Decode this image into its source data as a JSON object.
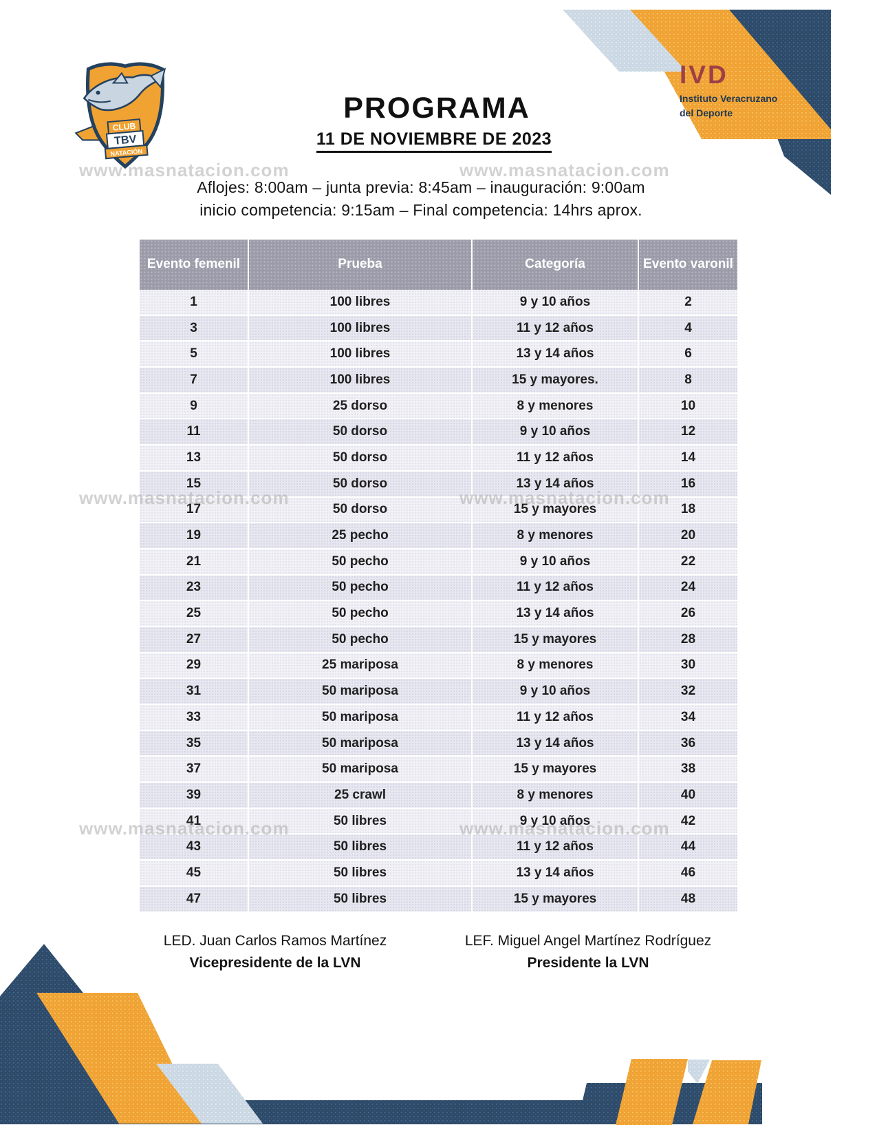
{
  "page": {
    "title": "PROGRAMA",
    "date": "11 DE NOVIEMBRE DE 2023",
    "schedule_line1": "Aflojes: 8:00am – junta previa: 8:45am –  inauguración: 9:00am",
    "schedule_line2": "inicio competencia: 9:15am – Final competencia: 14hrs aprox."
  },
  "logos": {
    "club": {
      "line1": "CLUB",
      "line2": "TBV",
      "line3": "NATACIÓN"
    },
    "ivd": {
      "acronym": "IVD",
      "line1": "Instituto Veracruzano",
      "line2": "del Deporte"
    }
  },
  "watermark": "www.masnatacion.com",
  "table": {
    "headers": [
      "Evento femenil",
      "Prueba",
      "Categoría",
      "Evento varonil"
    ],
    "rows": [
      [
        "1",
        "100 libres",
        "9 y 10 años",
        "2"
      ],
      [
        "3",
        "100 libres",
        "11 y 12 años",
        "4"
      ],
      [
        "5",
        "100 libres",
        "13 y 14 años",
        "6"
      ],
      [
        "7",
        "100 libres",
        "15 y mayores.",
        "8"
      ],
      [
        "9",
        "25 dorso",
        "8 y menores",
        "10"
      ],
      [
        "11",
        "50 dorso",
        "9 y 10 años",
        "12"
      ],
      [
        "13",
        "50 dorso",
        "11 y 12 años",
        "14"
      ],
      [
        "15",
        "50 dorso",
        "13 y 14 años",
        "16"
      ],
      [
        "17",
        "50 dorso",
        "15 y mayores",
        "18"
      ],
      [
        "19",
        "25 pecho",
        "8 y menores",
        "20"
      ],
      [
        "21",
        "50 pecho",
        "9 y 10 años",
        "22"
      ],
      [
        "23",
        "50 pecho",
        "11 y 12 años",
        "24"
      ],
      [
        "25",
        "50 pecho",
        "13 y 14 años",
        "26"
      ],
      [
        "27",
        "50 pecho",
        "15 y mayores",
        "28"
      ],
      [
        "29",
        "25 mariposa",
        "8 y menores",
        "30"
      ],
      [
        "31",
        "50 mariposa",
        "9 y 10 años",
        "32"
      ],
      [
        "33",
        "50 mariposa",
        "11 y 12 años",
        "34"
      ],
      [
        "35",
        "50 mariposa",
        "13 y 14 años",
        "36"
      ],
      [
        "37",
        "50 mariposa",
        "15 y mayores",
        "38"
      ],
      [
        "39",
        "25 crawl",
        "8 y menores",
        "40"
      ],
      [
        "41",
        "50 libres",
        "9 y 10 años",
        "42"
      ],
      [
        "43",
        "50 libres",
        "11 y 12 años",
        "44"
      ],
      [
        "45",
        "50 libres",
        "13 y 14 años",
        "46"
      ],
      [
        "47",
        "50 libres",
        "15 y mayores",
        "48"
      ]
    ]
  },
  "footer": {
    "left": {
      "name": "LED. Juan Carlos Ramos Martínez",
      "role": "Vicepresidente de la LVN"
    },
    "right": {
      "name": "LEF. Miguel Angel Martínez Rodríguez",
      "role": "Presidente la LVN"
    }
  },
  "colors": {
    "navy": "#2d4a69",
    "orange": "#f0a232",
    "light_blue": "#cbd8e3",
    "ivd_red": "#9e3f48",
    "header_gray": "#9b9ba9"
  }
}
